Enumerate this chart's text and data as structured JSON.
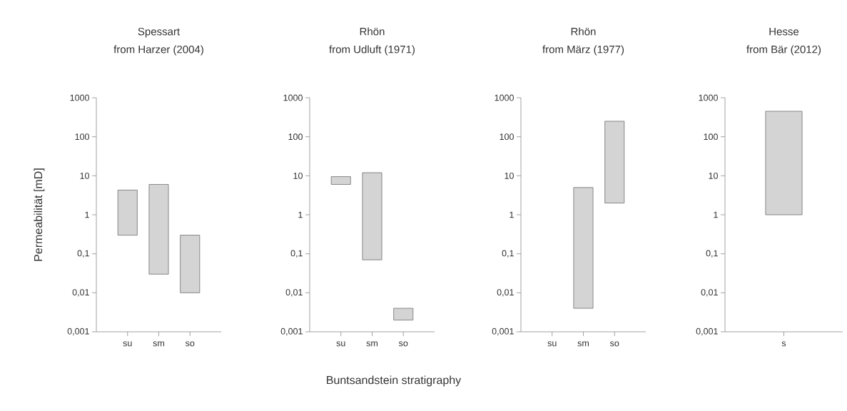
{
  "chart_data": [
    {
      "type": "bar",
      "title": "Spessart",
      "subtitle": "from Harzer (2004)",
      "ylabel": "Permeabilität [mD]",
      "categories": [
        "su",
        "sm",
        "so"
      ],
      "base": [
        0.3,
        0.03,
        0.01
      ],
      "values": [
        4.0,
        5.97,
        0.29
      ],
      "color": "#d4d4d4",
      "log": true,
      "ylim": [
        0.001,
        1000
      ],
      "yticks": [
        {
          "value": 0.001,
          "label": "0,001"
        },
        {
          "value": 0.01,
          "label": "0,01"
        },
        {
          "value": 0.1,
          "label": "0,1"
        },
        1,
        10,
        100,
        1000
      ]
    },
    {
      "type": "bar",
      "title": "Rhön",
      "subtitle": "from Udluft (1971)",
      "xlabel": "Buntsandstein stratigraphy",
      "categories": [
        "su",
        "sm",
        "so"
      ],
      "base": [
        6,
        0.07,
        0.002
      ],
      "values": [
        3.5,
        11.93,
        0.002
      ],
      "color": "#d4d4d4",
      "log": true,
      "ylim": [
        0.001,
        1000
      ],
      "yticks": [
        {
          "value": 0.001,
          "label": "0,001"
        },
        {
          "value": 0.01,
          "label": "0,01"
        },
        {
          "value": 0.1,
          "label": "0,1"
        },
        1,
        10,
        100,
        1000
      ]
    },
    {
      "type": "bar",
      "title": "Rhön",
      "subtitle": "from März (1977)",
      "categories": [
        "su",
        "sm",
        "so"
      ],
      "base": [
        null,
        0.004,
        2
      ],
      "values": [
        null,
        4.996,
        248
      ],
      "color": "#d4d4d4",
      "log": true,
      "ylim": [
        0.001,
        1000
      ],
      "yticks": [
        {
          "value": 0.001,
          "label": "0,001"
        },
        {
          "value": 0.01,
          "label": "0,01"
        },
        {
          "value": 0.1,
          "label": "0,1"
        },
        1,
        10,
        100,
        1000
      ]
    },
    {
      "type": "bar",
      "title": "Hesse",
      "subtitle": "from Bär (2012)",
      "categories": [
        "s"
      ],
      "base": [
        1
      ],
      "values": [
        449
      ],
      "color": "#d4d4d4",
      "log": true,
      "ylim": [
        0.001,
        1000
      ],
      "yticks": [
        {
          "value": 0.001,
          "label": "0,001"
        },
        {
          "value": 0.01,
          "label": "0,01"
        },
        {
          "value": 0.1,
          "label": "0,1"
        },
        1,
        10,
        100,
        1000
      ]
    }
  ]
}
